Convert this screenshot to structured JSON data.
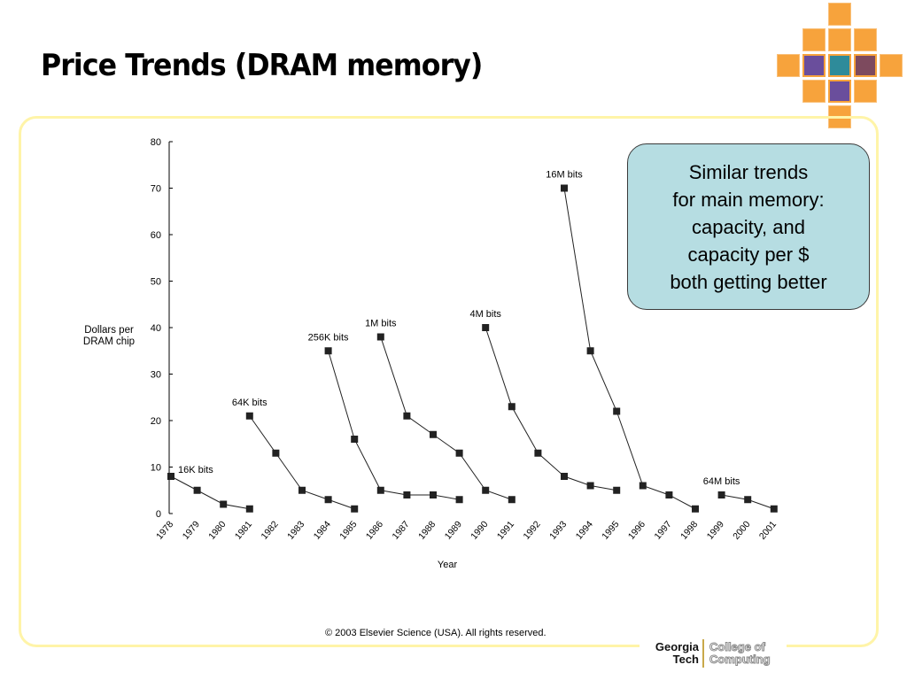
{
  "slide": {
    "title": "Price Trends (DRAM memory)"
  },
  "callout": {
    "text": "Similar trends\nfor main memory:\ncapacity, and\ncapacity per $\nboth getting better"
  },
  "footer": {
    "copyright": "© 2003 Elsevier Science (USA). All rights reserved.",
    "logo_name_line1": "Georgia",
    "logo_name_line2": "Tech",
    "logo_unit_line1": "College of",
    "logo_unit_line2": "Computing"
  },
  "colors": {
    "accent_orange": "#f7a33c",
    "callout_fill": "#b6dde2",
    "frame_border": "#fff4a8",
    "series_color": "#222222"
  },
  "chart_data": {
    "type": "line",
    "title": "",
    "xlabel": "Year",
    "ylabel": "Dollars per DRAM chip",
    "ylim": [
      0,
      80
    ],
    "yticks": [
      0,
      10,
      20,
      30,
      40,
      50,
      60,
      70,
      80
    ],
    "x": [
      "1978",
      "1979",
      "1980",
      "1981",
      "1982",
      "1983",
      "1984",
      "1985",
      "1986",
      "1987",
      "1988",
      "1989",
      "1990",
      "1991",
      "1992",
      "1993",
      "1994",
      "1995",
      "1996",
      "1997",
      "1998",
      "1999",
      "2000",
      "2001"
    ],
    "marker": "square",
    "grid": false,
    "legend": "none",
    "series": [
      {
        "name": "16K bits",
        "x": [
          "1978",
          "1979",
          "1980",
          "1981"
        ],
        "values": [
          8,
          5,
          2,
          1
        ]
      },
      {
        "name": "64K bits",
        "x": [
          "1981",
          "1982",
          "1983",
          "1984",
          "1985"
        ],
        "values": [
          21,
          13,
          5,
          3,
          1
        ]
      },
      {
        "name": "256K bits",
        "x": [
          "1984",
          "1985",
          "1986",
          "1987",
          "1988",
          "1989"
        ],
        "values": [
          35,
          16,
          5,
          4,
          4,
          3
        ]
      },
      {
        "name": "1M bits",
        "x": [
          "1986",
          "1987",
          "1988",
          "1989",
          "1990",
          "1991"
        ],
        "values": [
          38,
          21,
          17,
          13,
          5,
          3
        ]
      },
      {
        "name": "4M bits",
        "x": [
          "1990",
          "1991",
          "1992",
          "1993",
          "1994",
          "1995"
        ],
        "values": [
          40,
          23,
          13,
          8,
          6,
          5
        ]
      },
      {
        "name": "16M bits",
        "x": [
          "1993",
          "1994",
          "1995",
          "1996",
          "1997",
          "1998"
        ],
        "values": [
          70,
          35,
          22,
          6,
          4,
          1
        ]
      },
      {
        "name": "64M bits",
        "x": [
          "1999",
          "2000",
          "2001"
        ],
        "values": [
          4,
          3,
          1
        ]
      }
    ]
  }
}
